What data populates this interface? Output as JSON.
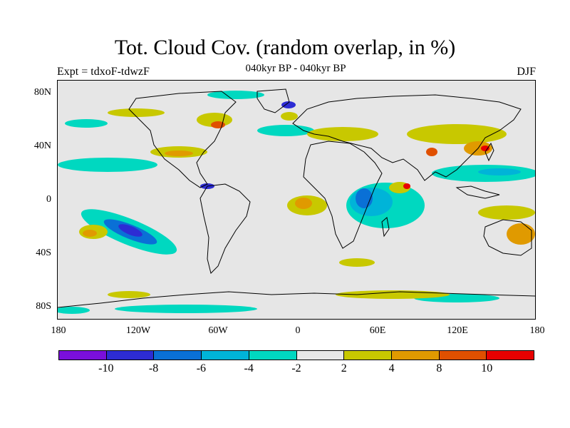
{
  "header": {
    "title": "Tot. Cloud Cov. (random overlap, in %)",
    "subtitle": "040kyr BP - 040kyr BP",
    "left_label": "Expt = tdxoF-tdwzF",
    "right_label": "DJF"
  },
  "map": {
    "background_color": "#e6e6e6",
    "lat_labels": [
      "80N",
      "40N",
      "0",
      "40S",
      "80S"
    ],
    "lon_labels": [
      "180",
      "120W",
      "60W",
      "0",
      "60E",
      "120E",
      "180"
    ]
  },
  "colorbar": {
    "colors": [
      "#7a0fdb",
      "#2d2cd4",
      "#0a70d6",
      "#00b4d8",
      "#00d8c0",
      "#e6e6e6",
      "#c8c800",
      "#e09a00",
      "#e05000",
      "#e80000"
    ],
    "labels": [
      "-10",
      "-8",
      "-6",
      "-4",
      "-2",
      "2",
      "4",
      "8",
      "10"
    ]
  }
}
